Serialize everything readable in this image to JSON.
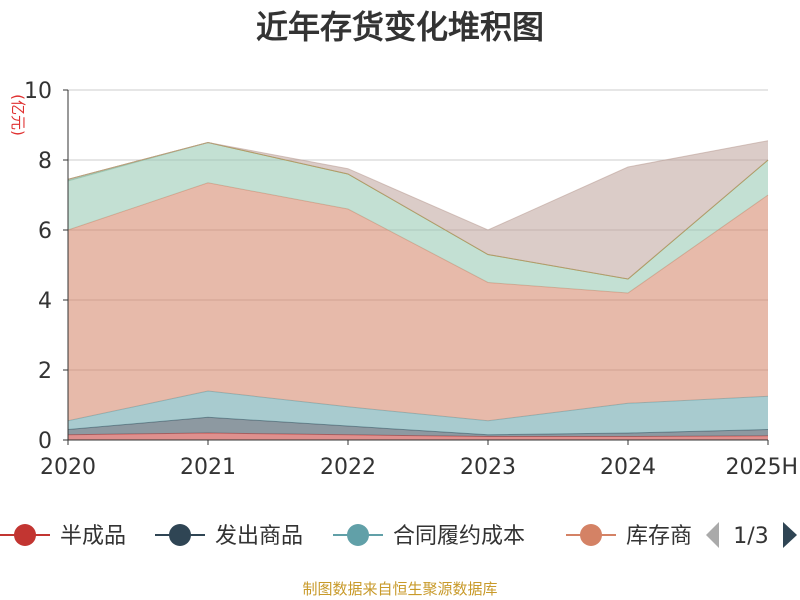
{
  "chart_data": {
    "type": "area",
    "title": "近年存货变化堆积图",
    "ylabel": "(亿元)",
    "xlabel": "",
    "categories": [
      "2020",
      "2021",
      "2022",
      "2023",
      "2024",
      "2025H"
    ],
    "ylim": [
      0,
      10
    ],
    "yticks": [
      0,
      2,
      4,
      6,
      8,
      10
    ],
    "grid": true,
    "legend_position": "bottom",
    "stacked": true,
    "series": [
      {
        "name": "半成品",
        "color": "#c23531",
        "values": [
          0.15,
          0.2,
          0.15,
          0.1,
          0.1,
          0.12
        ]
      },
      {
        "name": "发出商品",
        "color": "#2f4554",
        "values": [
          0.15,
          0.45,
          0.25,
          0.05,
          0.1,
          0.18
        ]
      },
      {
        "name": "合同履约成本",
        "color": "#61a0a8",
        "values": [
          0.25,
          0.75,
          0.55,
          0.4,
          0.85,
          0.95
        ]
      },
      {
        "name": "库存商品",
        "values": [
          5.45,
          5.95,
          5.65,
          3.95,
          3.15,
          5.75
        ],
        "color": "#d48265"
      },
      {
        "name": "",
        "color": "#91c7ae",
        "values": [
          1.4,
          1.15,
          1.0,
          0.8,
          0.4,
          1.0
        ]
      },
      {
        "name": "",
        "color": "#749f83",
        "values": [
          0.05,
          0.0,
          0.0,
          0.0,
          0.0,
          0.0
        ]
      },
      {
        "name": "",
        "color": "#ca8622",
        "values": [
          0.0,
          0.0,
          0.0,
          0.0,
          0.0,
          0.0
        ]
      },
      {
        "name": "",
        "color": "#bda29a",
        "values": [
          0.0,
          0.0,
          0.15,
          0.7,
          3.2,
          0.55
        ]
      }
    ]
  },
  "legend": {
    "items": [
      {
        "name": "半成品",
        "color": "#c23531"
      },
      {
        "name": "发出商品",
        "color": "#2f4554"
      },
      {
        "name": "合同履约成本",
        "color": "#61a0a8"
      },
      {
        "name": "库存商",
        "color": "#d48265"
      }
    ],
    "pager": "1/3"
  },
  "icons": {
    "prev": "triangle-left-icon",
    "next": "triangle-right-icon"
  },
  "source": "制图数据来自恒生聚源数据库"
}
